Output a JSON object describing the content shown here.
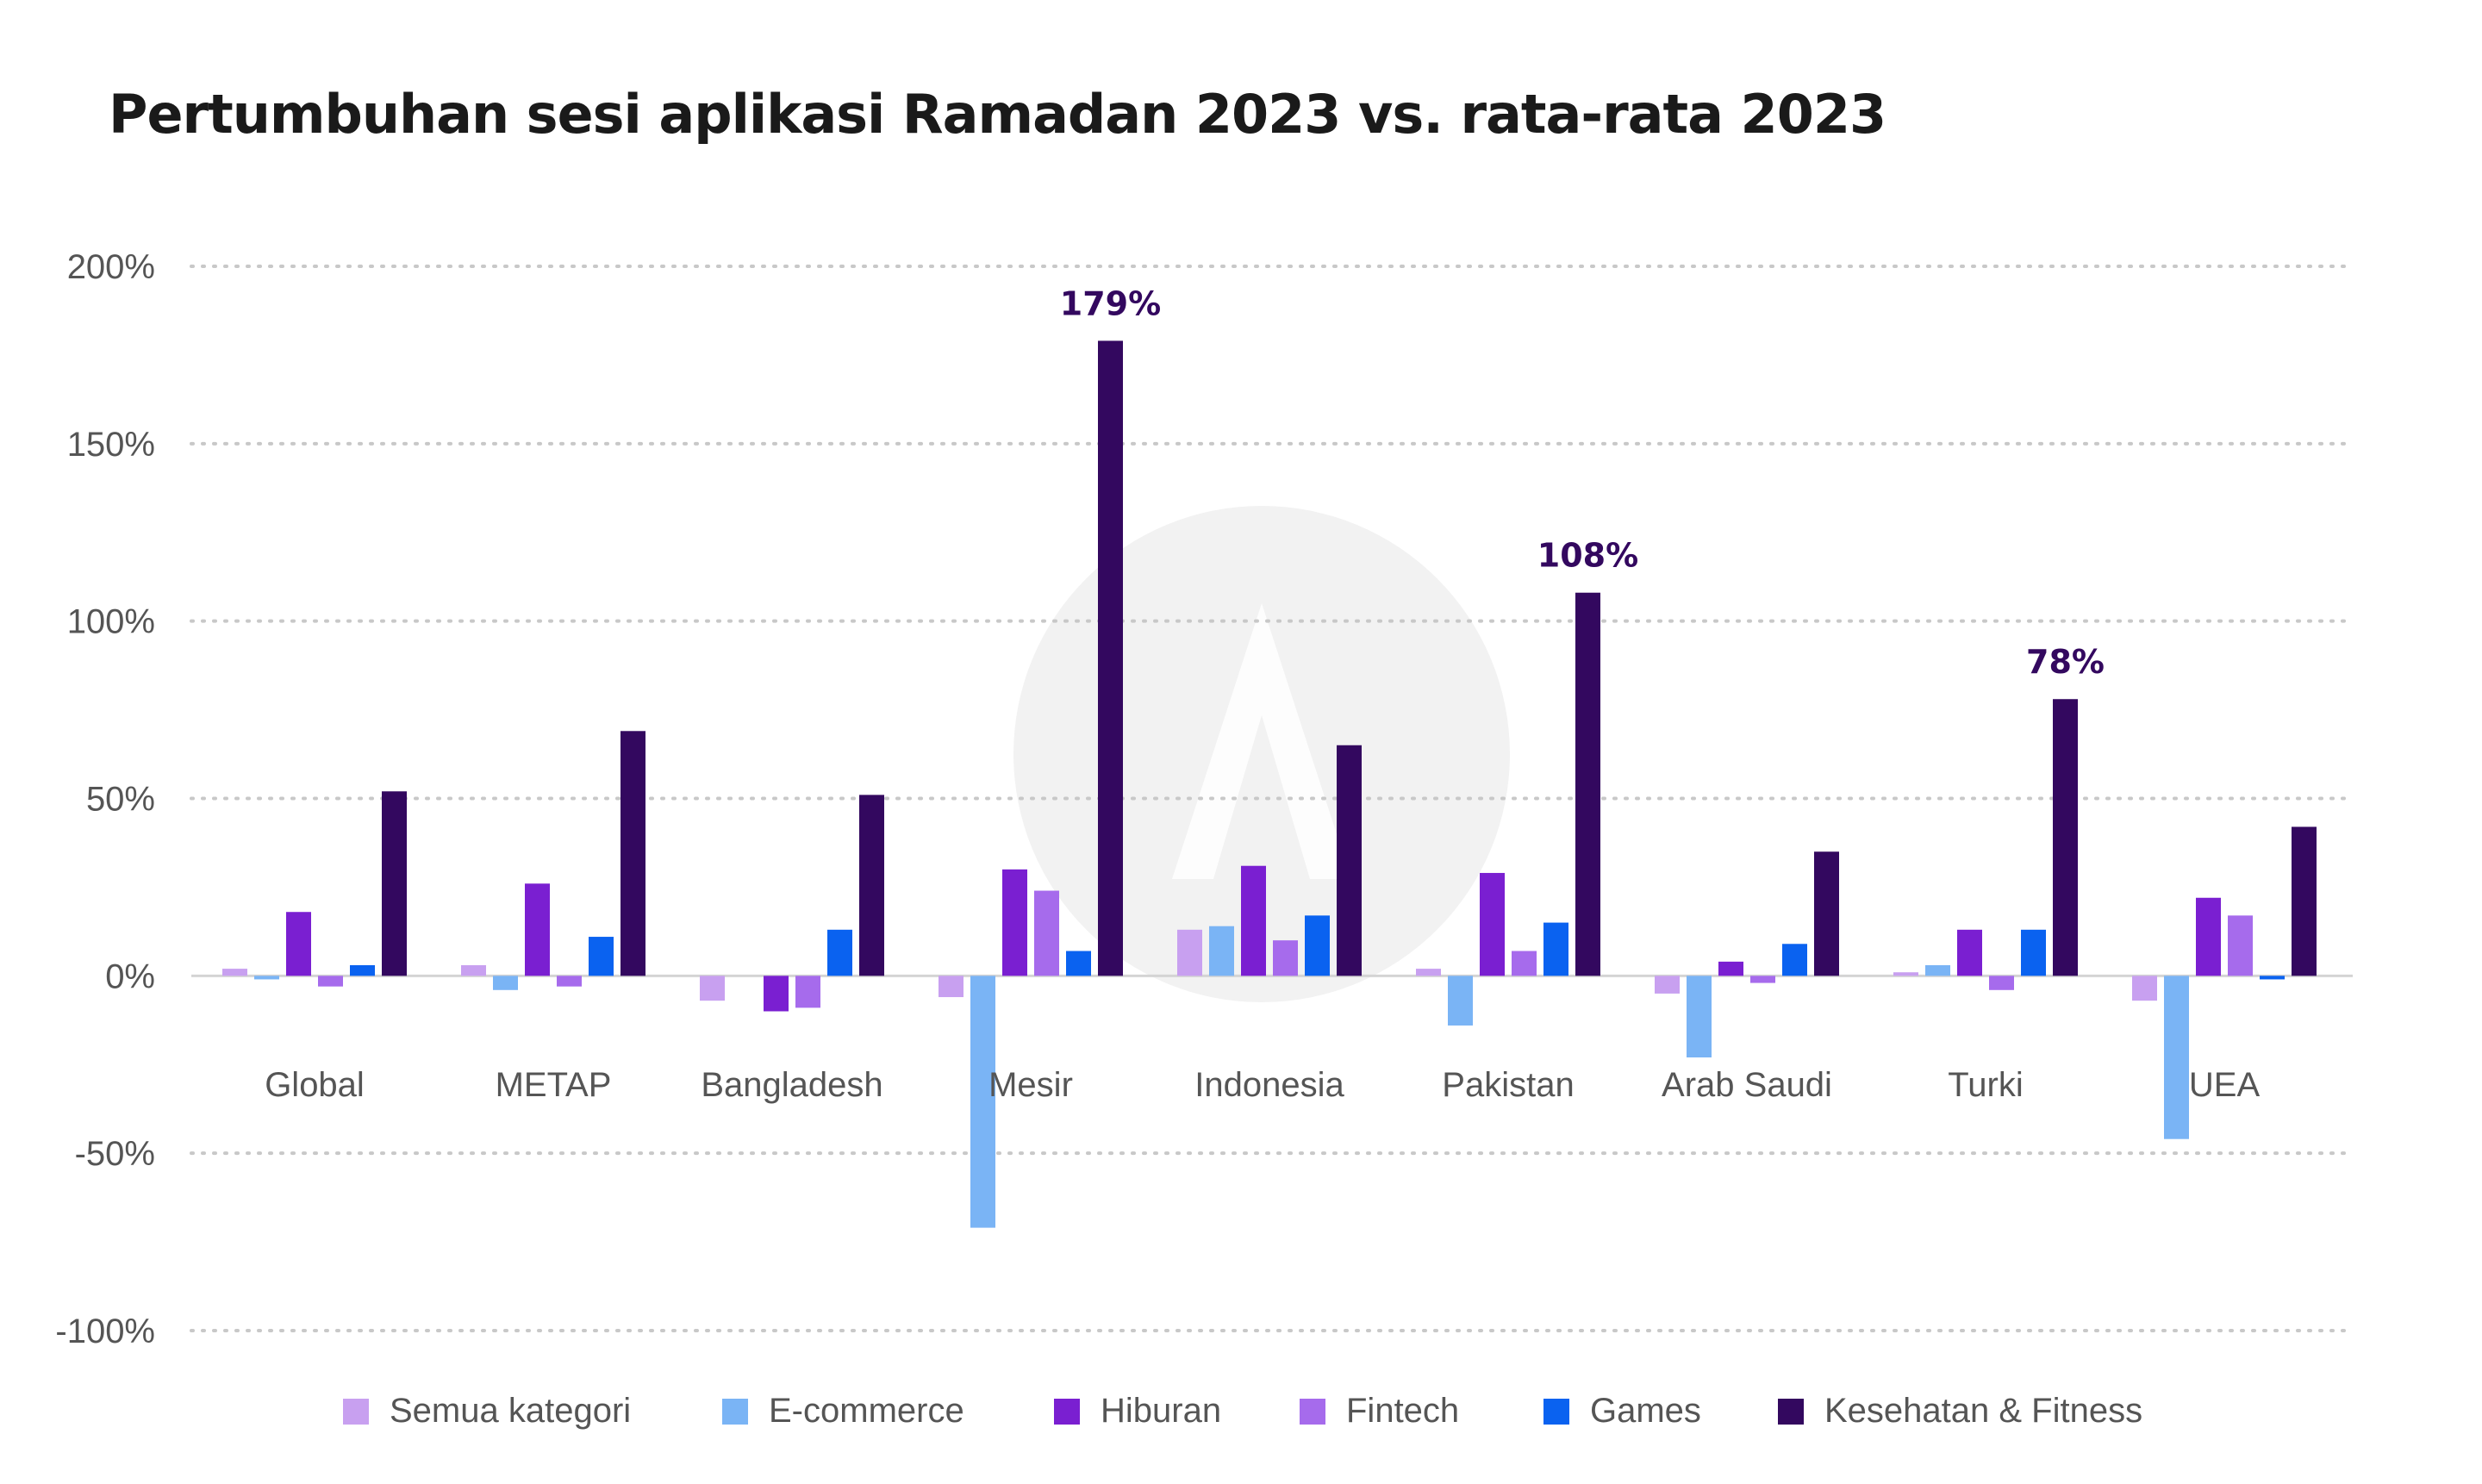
{
  "chart_data": {
    "type": "bar",
    "title": "Pertumbuhan sesi aplikasi Ramadan 2023 vs. rata-rata 2023",
    "xlabel": "",
    "ylabel": "",
    "ylim": [
      -100,
      200
    ],
    "yticks": [
      200,
      150,
      100,
      50,
      0,
      -50,
      -100
    ],
    "ytick_labels": [
      "200%",
      "150%",
      "100%",
      "50%",
      "0%",
      "-50%",
      "-100%"
    ],
    "grid": true,
    "legend_position": "bottom",
    "categories": [
      "Global",
      "METAP",
      "Bangladesh",
      "Mesir",
      "Indonesia",
      "Pakistan",
      "Arab Saudi",
      "Turki",
      "UEA"
    ],
    "series": [
      {
        "name": "Semua kategori",
        "color": "#c8a0f0",
        "values": [
          2,
          3,
          -7,
          -6,
          13,
          2,
          -5,
          1,
          -7
        ]
      },
      {
        "name": "E-commerce",
        "color": "#7ab4f5",
        "values": [
          -1,
          -4,
          0,
          -71,
          14,
          -14,
          -23,
          3,
          -46
        ]
      },
      {
        "name": "Hiburan",
        "color": "#7a1fd1",
        "values": [
          18,
          26,
          -10,
          30,
          31,
          29,
          4,
          13,
          22
        ]
      },
      {
        "name": "Fintech",
        "color": "#a66bec",
        "values": [
          -3,
          -3,
          -9,
          24,
          10,
          7,
          -2,
          -4,
          17
        ]
      },
      {
        "name": "Games",
        "color": "#0a62f0",
        "values": [
          3,
          11,
          13,
          7,
          17,
          15,
          9,
          13,
          -1
        ]
      },
      {
        "name": "Kesehatan & Fitness",
        "color": "#33085f",
        "values": [
          52,
          69,
          51,
          179,
          65,
          108,
          35,
          78,
          42
        ]
      }
    ],
    "annotations": [
      {
        "category": "Mesir",
        "series": "Kesehatan & Fitness",
        "text": "179%",
        "value": 179
      },
      {
        "category": "Pakistan",
        "series": "Kesehatan & Fitness",
        "text": "108%",
        "value": 108
      },
      {
        "category": "Turki",
        "series": "Kesehatan & Fitness",
        "text": "78%",
        "value": 78
      }
    ],
    "annotation_color": "#33085f",
    "label_color": "#555555",
    "grid_color": "#c8c8c8"
  }
}
